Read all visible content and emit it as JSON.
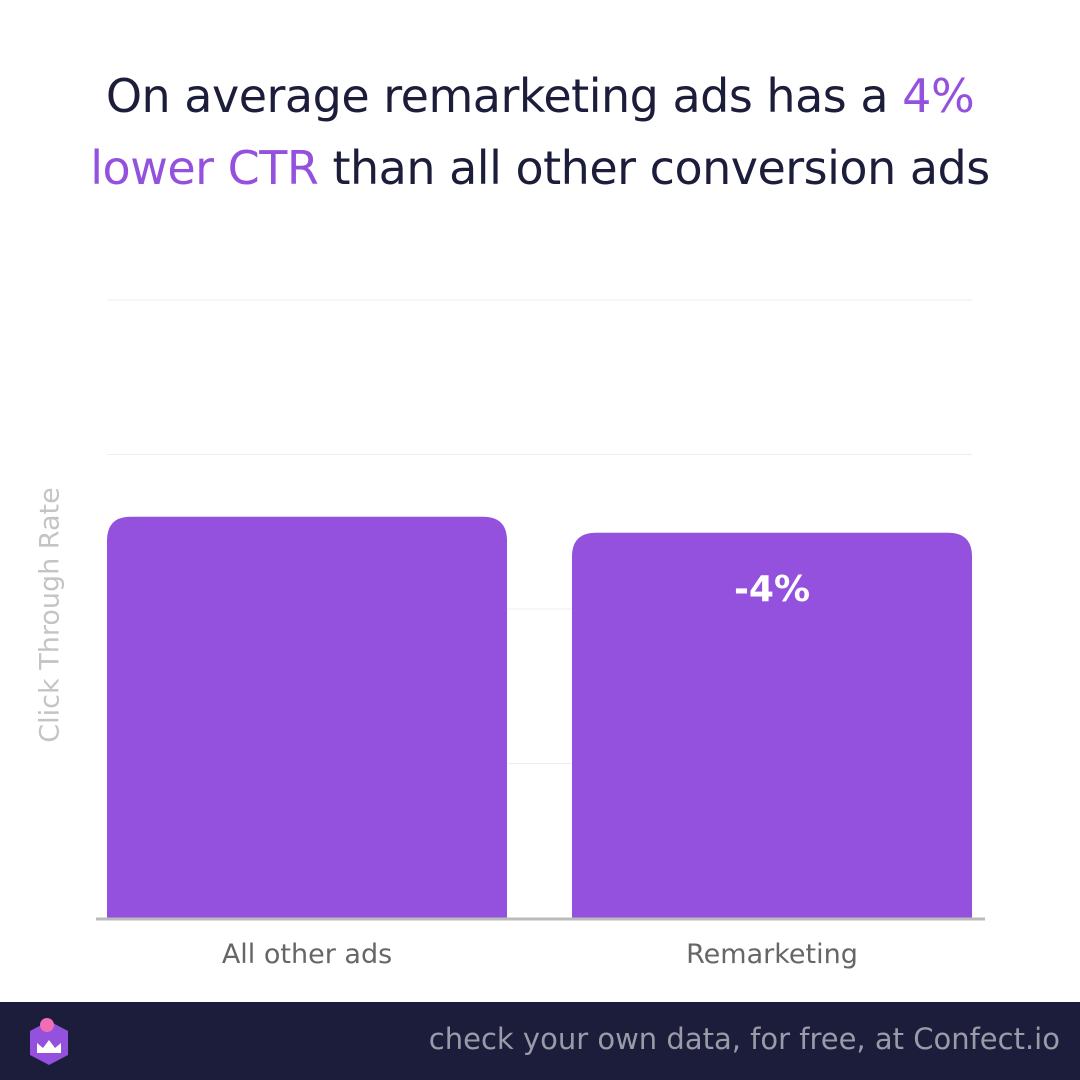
{
  "headline": {
    "part1": "On average remarketing ads has a ",
    "highlight": "4% lower CTR",
    "part2": " than all other conversion ads"
  },
  "chart_data": {
    "type": "bar",
    "categories": [
      "All other ads",
      "Remarketing"
    ],
    "values": [
      100,
      96
    ],
    "ylabel": "Click Through Rate",
    "xlabel": "",
    "ylim": [
      0,
      154
    ],
    "grid": true,
    "data_labels": [
      "",
      "-4%"
    ],
    "bar_color": "#9451de"
  },
  "footer": {
    "text": "check your own data, for free, at Confect.io",
    "logo_icon": "confect-logo-icon"
  },
  "colors": {
    "accent": "#9451de",
    "dark": "#1c1d3a",
    "grid": "#eeeeee",
    "axis": "#bbbbbb",
    "ylabel": "#c4c4c4"
  }
}
